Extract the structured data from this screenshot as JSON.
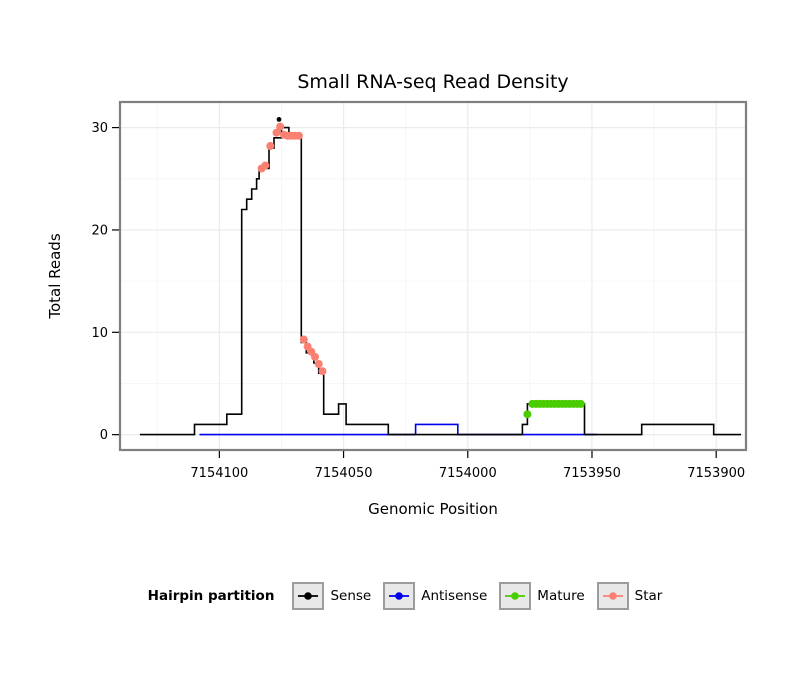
{
  "title": "Small RNA-seq Read Density",
  "x_axis_label": "Genomic Position",
  "y_axis_label": "Total Reads",
  "legend": {
    "label": "Hairpin partition",
    "items": [
      {
        "name": "Sense",
        "color": "#000000"
      },
      {
        "name": "Antisense",
        "color": "#0000EE"
      },
      {
        "name": "Mature",
        "color": "#49CC00"
      },
      {
        "name": "Star",
        "color": "#FA8072"
      }
    ]
  },
  "chart_data": {
    "type": "line",
    "title": "Small RNA-seq Read Density",
    "xlabel": "Genomic Position",
    "ylabel": "Total Reads",
    "x_axis_reversed": true,
    "x_domain": [
      7154140,
      7153888
    ],
    "y_domain": [
      -1.5,
      32.5
    ],
    "x_ticks": [
      7154100,
      7154050,
      7154000,
      7153950,
      7153900
    ],
    "x_tick_labels": [
      "7154100",
      "7154050",
      "7154000",
      "7153950",
      "7153900"
    ],
    "x_minor_ticks": [
      7154125,
      7154075,
      7154025,
      7153975,
      7153925
    ],
    "y_ticks": [
      0,
      10,
      20,
      30
    ],
    "y_tick_labels": [
      "0",
      "10",
      "20",
      "30"
    ],
    "y_minor_ticks": [
      5,
      15,
      25
    ],
    "grid": {
      "major_color": "#EBEBEB",
      "minor_color": "#F6F6F6"
    },
    "panel_border_color": "#7F7F7F",
    "series": [
      {
        "name": "Antisense",
        "color": "#0000EE",
        "line_width": 1.6,
        "points": [
          [
            7154108,
            0
          ],
          [
            7154021,
            0
          ],
          [
            7154021,
            1
          ],
          [
            7154004,
            1
          ],
          [
            7154004,
            0
          ],
          [
            7153948,
            0
          ]
        ]
      },
      {
        "name": "Sense",
        "color": "#000000",
        "line_width": 1.6,
        "points": [
          [
            7154132,
            0
          ],
          [
            7154110,
            0
          ],
          [
            7154110,
            1
          ],
          [
            7154097,
            1
          ],
          [
            7154097,
            2
          ],
          [
            7154091,
            2
          ],
          [
            7154091,
            22
          ],
          [
            7154089,
            22
          ],
          [
            7154089,
            23
          ],
          [
            7154087,
            23
          ],
          [
            7154087,
            24
          ],
          [
            7154085,
            24
          ],
          [
            7154085,
            25
          ],
          [
            7154084,
            25
          ],
          [
            7154084,
            26
          ],
          [
            7154080,
            26
          ],
          [
            7154080,
            28
          ],
          [
            7154078,
            28
          ],
          [
            7154078,
            29
          ],
          [
            7154075,
            29
          ],
          [
            7154075,
            30
          ],
          [
            7154072,
            30
          ],
          [
            7154072,
            29
          ],
          [
            7154067,
            29
          ],
          [
            7154067,
            9
          ],
          [
            7154065,
            9
          ],
          [
            7154065,
            8
          ],
          [
            7154062,
            8
          ],
          [
            7154062,
            7
          ],
          [
            7154060,
            7
          ],
          [
            7154060,
            6
          ],
          [
            7154058,
            6
          ],
          [
            7154058,
            2
          ],
          [
            7154052,
            2
          ],
          [
            7154052,
            3
          ],
          [
            7154049,
            3
          ],
          [
            7154049,
            1
          ],
          [
            7154032,
            1
          ],
          [
            7154032,
            0
          ],
          [
            7153978,
            0
          ],
          [
            7153978,
            1
          ],
          [
            7153976,
            1
          ],
          [
            7153976,
            3
          ],
          [
            7153953,
            3
          ],
          [
            7153953,
            0
          ],
          [
            7153930,
            0
          ],
          [
            7153930,
            1
          ],
          [
            7153901,
            1
          ],
          [
            7153901,
            0
          ],
          [
            7153890,
            0
          ]
        ],
        "dots": [
          [
            7154076,
            30.8
          ]
        ],
        "dot_radius": 2.4
      },
      {
        "name": "Mature",
        "color": "#49CC00",
        "dot_radius": 4,
        "dots": [
          [
            7153976,
            2
          ],
          [
            7153974,
            3
          ],
          [
            7153972.5,
            3
          ],
          [
            7153971,
            3
          ],
          [
            7153969.5,
            3
          ],
          [
            7153968,
            3
          ],
          [
            7153966.5,
            3
          ],
          [
            7153965,
            3
          ],
          [
            7153963.5,
            3
          ],
          [
            7153962,
            3
          ],
          [
            7153960.5,
            3
          ],
          [
            7153959,
            3
          ],
          [
            7153957.5,
            3
          ],
          [
            7153956,
            3
          ],
          [
            7153954.5,
            3
          ]
        ]
      },
      {
        "name": "Star",
        "color": "#FA8072",
        "dot_radius": 4,
        "dots": [
          [
            7154083,
            26
          ],
          [
            7154081.5,
            26.3
          ],
          [
            7154079.5,
            28.2
          ],
          [
            7154077,
            29.5
          ],
          [
            7154075.5,
            30.1
          ],
          [
            7154074,
            29.3
          ],
          [
            7154072.5,
            29.2
          ],
          [
            7154071,
            29.2
          ],
          [
            7154069.5,
            29.2
          ],
          [
            7154068,
            29.2
          ],
          [
            7154066,
            9.3
          ],
          [
            7154064.5,
            8.6
          ],
          [
            7154063,
            8.1
          ],
          [
            7154061.5,
            7.6
          ],
          [
            7154060,
            6.9
          ],
          [
            7154058.5,
            6.2
          ]
        ]
      }
    ]
  }
}
